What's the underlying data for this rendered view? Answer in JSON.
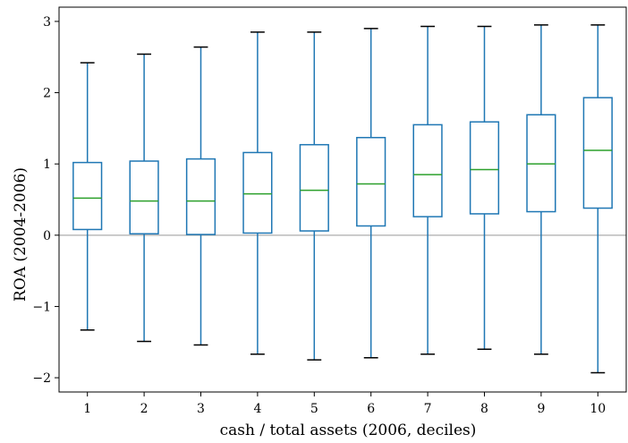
{
  "chart_data": {
    "type": "boxplot",
    "title": "",
    "xlabel": "cash / total assets (2006, deciles)",
    "ylabel": "ROA (2004-2006)",
    "categories": [
      "1",
      "2",
      "3",
      "4",
      "5",
      "6",
      "7",
      "8",
      "9",
      "10"
    ],
    "ylim": [
      -2.2,
      3.2
    ],
    "yticks": [
      -2,
      -1,
      0,
      1,
      2,
      3
    ],
    "ytick_labels": [
      "−2",
      "−1",
      "0",
      "1",
      "2",
      "3"
    ],
    "reference_line_y": 0,
    "grid": false,
    "boxes": [
      {
        "category": "1",
        "whisker_low": -1.33,
        "q1": 0.08,
        "median": 0.52,
        "q3": 1.02,
        "whisker_high": 2.42
      },
      {
        "category": "2",
        "whisker_low": -1.49,
        "q1": 0.02,
        "median": 0.48,
        "q3": 1.04,
        "whisker_high": 2.54
      },
      {
        "category": "3",
        "whisker_low": -1.54,
        "q1": 0.01,
        "median": 0.48,
        "q3": 1.07,
        "whisker_high": 2.64
      },
      {
        "category": "4",
        "whisker_low": -1.67,
        "q1": 0.03,
        "median": 0.58,
        "q3": 1.16,
        "whisker_high": 2.85
      },
      {
        "category": "5",
        "whisker_low": -1.75,
        "q1": 0.06,
        "median": 0.63,
        "q3": 1.27,
        "whisker_high": 2.85
      },
      {
        "category": "6",
        "whisker_low": -1.72,
        "q1": 0.13,
        "median": 0.72,
        "q3": 1.37,
        "whisker_high": 2.9
      },
      {
        "category": "7",
        "whisker_low": -1.67,
        "q1": 0.26,
        "median": 0.85,
        "q3": 1.55,
        "whisker_high": 2.93
      },
      {
        "category": "8",
        "whisker_low": -1.6,
        "q1": 0.3,
        "median": 0.92,
        "q3": 1.59,
        "whisker_high": 2.93
      },
      {
        "category": "9",
        "whisker_low": -1.67,
        "q1": 0.33,
        "median": 1.0,
        "q3": 1.69,
        "whisker_high": 2.95
      },
      {
        "category": "10",
        "whisker_low": -1.93,
        "q1": 0.38,
        "median": 1.19,
        "q3": 1.93,
        "whisker_high": 2.95
      }
    ],
    "colors": {
      "box": "#1f77b4",
      "median": "#2ca02c",
      "cap": "#000000",
      "zero_line": "#999999"
    }
  }
}
